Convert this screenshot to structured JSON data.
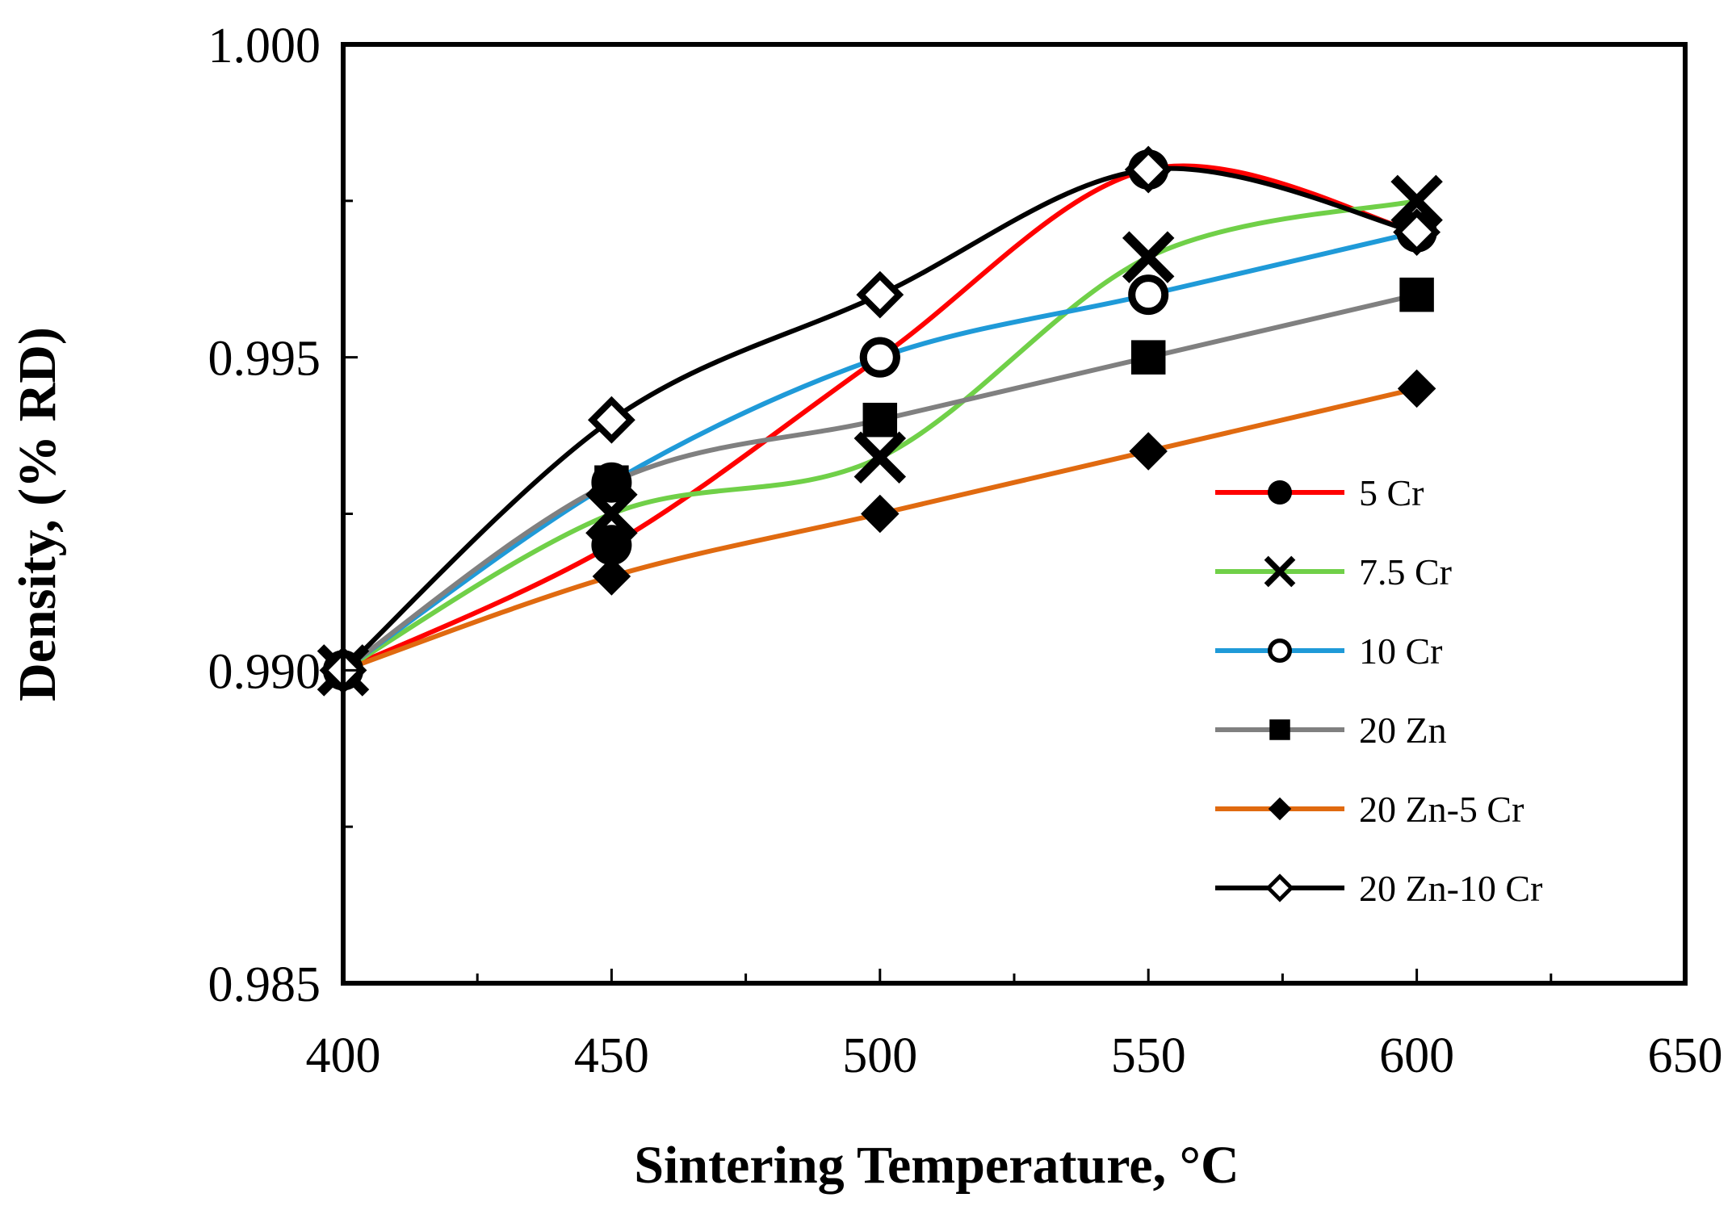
{
  "chart_data": {
    "type": "line",
    "title": "",
    "xlabel": "Sintering Temperature, °C",
    "ylabel": "Density, (% RD)",
    "xlim": [
      400,
      650
    ],
    "ylim": [
      0.985,
      1.0
    ],
    "x_major_ticks": [
      400,
      450,
      500,
      550,
      600,
      650
    ],
    "x_tick_labels": [
      "400",
      "450",
      "500",
      "550",
      "600",
      "650"
    ],
    "x_minor_step": 25,
    "y_major_ticks": [
      0.985,
      0.99,
      0.995,
      1.0
    ],
    "y_tick_labels": [
      "0.985",
      "0.990",
      "0.995",
      "1.000"
    ],
    "y_minor_step": 0.0025,
    "grid": false,
    "legend_position": "right-center",
    "series": [
      {
        "name": "5 Cr",
        "color": "#ff0000",
        "marker": "filled-circle",
        "x": [
          400,
          450,
          500,
          550,
          600
        ],
        "y": [
          0.99,
          0.992,
          0.995,
          0.998,
          0.997
        ]
      },
      {
        "name": "7.5 Cr",
        "color": "#70d048",
        "marker": "x-cross",
        "x": [
          400,
          450,
          500,
          550,
          600
        ],
        "y": [
          0.99,
          0.9925,
          0.9934,
          0.9966,
          0.9975
        ]
      },
      {
        "name": "10 Cr",
        "color": "#1f9ad8",
        "marker": "hollow-circle",
        "x": [
          400,
          450,
          500,
          550,
          600
        ],
        "y": [
          0.99,
          0.993,
          0.995,
          0.996,
          0.997
        ]
      },
      {
        "name": "20 Zn",
        "color": "#808080",
        "marker": "filled-square",
        "x": [
          400,
          450,
          500,
          550,
          600
        ],
        "y": [
          0.99,
          0.993,
          0.994,
          0.995,
          0.996
        ]
      },
      {
        "name": "20 Zn-5 Cr",
        "color": "#e06a10",
        "marker": "filled-diamond",
        "x": [
          400,
          450,
          500,
          550,
          600
        ],
        "y": [
          0.99,
          0.9915,
          0.9925,
          0.9935,
          0.9945
        ]
      },
      {
        "name": "20 Zn-10 Cr",
        "color": "#000000",
        "marker": "hollow-diamond",
        "x": [
          400,
          450,
          500,
          550,
          600
        ],
        "y": [
          0.99,
          0.994,
          0.996,
          0.998,
          0.997
        ]
      }
    ]
  }
}
